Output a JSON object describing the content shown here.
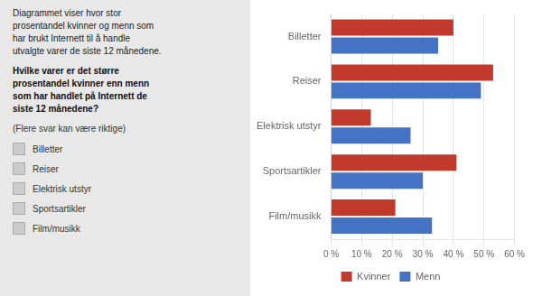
{
  "chart_data": {
    "type": "bar",
    "orientation": "horizontal",
    "annotations": [
      "Diagrammet viser hvor stor\nprosentandel kvinner og menn som\nhar brukt Internett til å handle\nutvalgte varer de siste 12 månedene.",
      "Hvilke varer er det større\nprosentandel kvinner enn menn\nsom har handlet på Internett de\nsiste 12 månedene?",
      "(Flere svar kan være riktige)"
    ],
    "checkboxes": [
      "Billetter",
      "Reiser",
      "Elektrisk utstyr",
      "Sportsartikler",
      "Film/musikk"
    ],
    "categories": [
      "Billetter",
      "Reiser",
      "Elektrisk utstyr",
      "Sportsartikler",
      "Film/musikk"
    ],
    "series": [
      {
        "name": "Kvinner",
        "color": "#C0392B",
        "values": [
          40,
          53,
          13,
          41,
          21
        ]
      },
      {
        "name": "Menn",
        "color": "#4472C4",
        "values": [
          35,
          49,
          26,
          30,
          33
        ]
      }
    ],
    "xlim": [
      0,
      60
    ],
    "xticks": [
      {
        "value": 0,
        "label": "0 %"
      },
      {
        "value": 10,
        "label": "10 %"
      },
      {
        "value": 20,
        "label": "20 %"
      },
      {
        "value": 30,
        "label": "30 %"
      },
      {
        "value": 40,
        "label": "40 %"
      },
      {
        "value": 50,
        "label": "50 %"
      },
      {
        "value": 60,
        "label": "60 %"
      }
    ],
    "grid": true,
    "legend": "bottom"
  }
}
